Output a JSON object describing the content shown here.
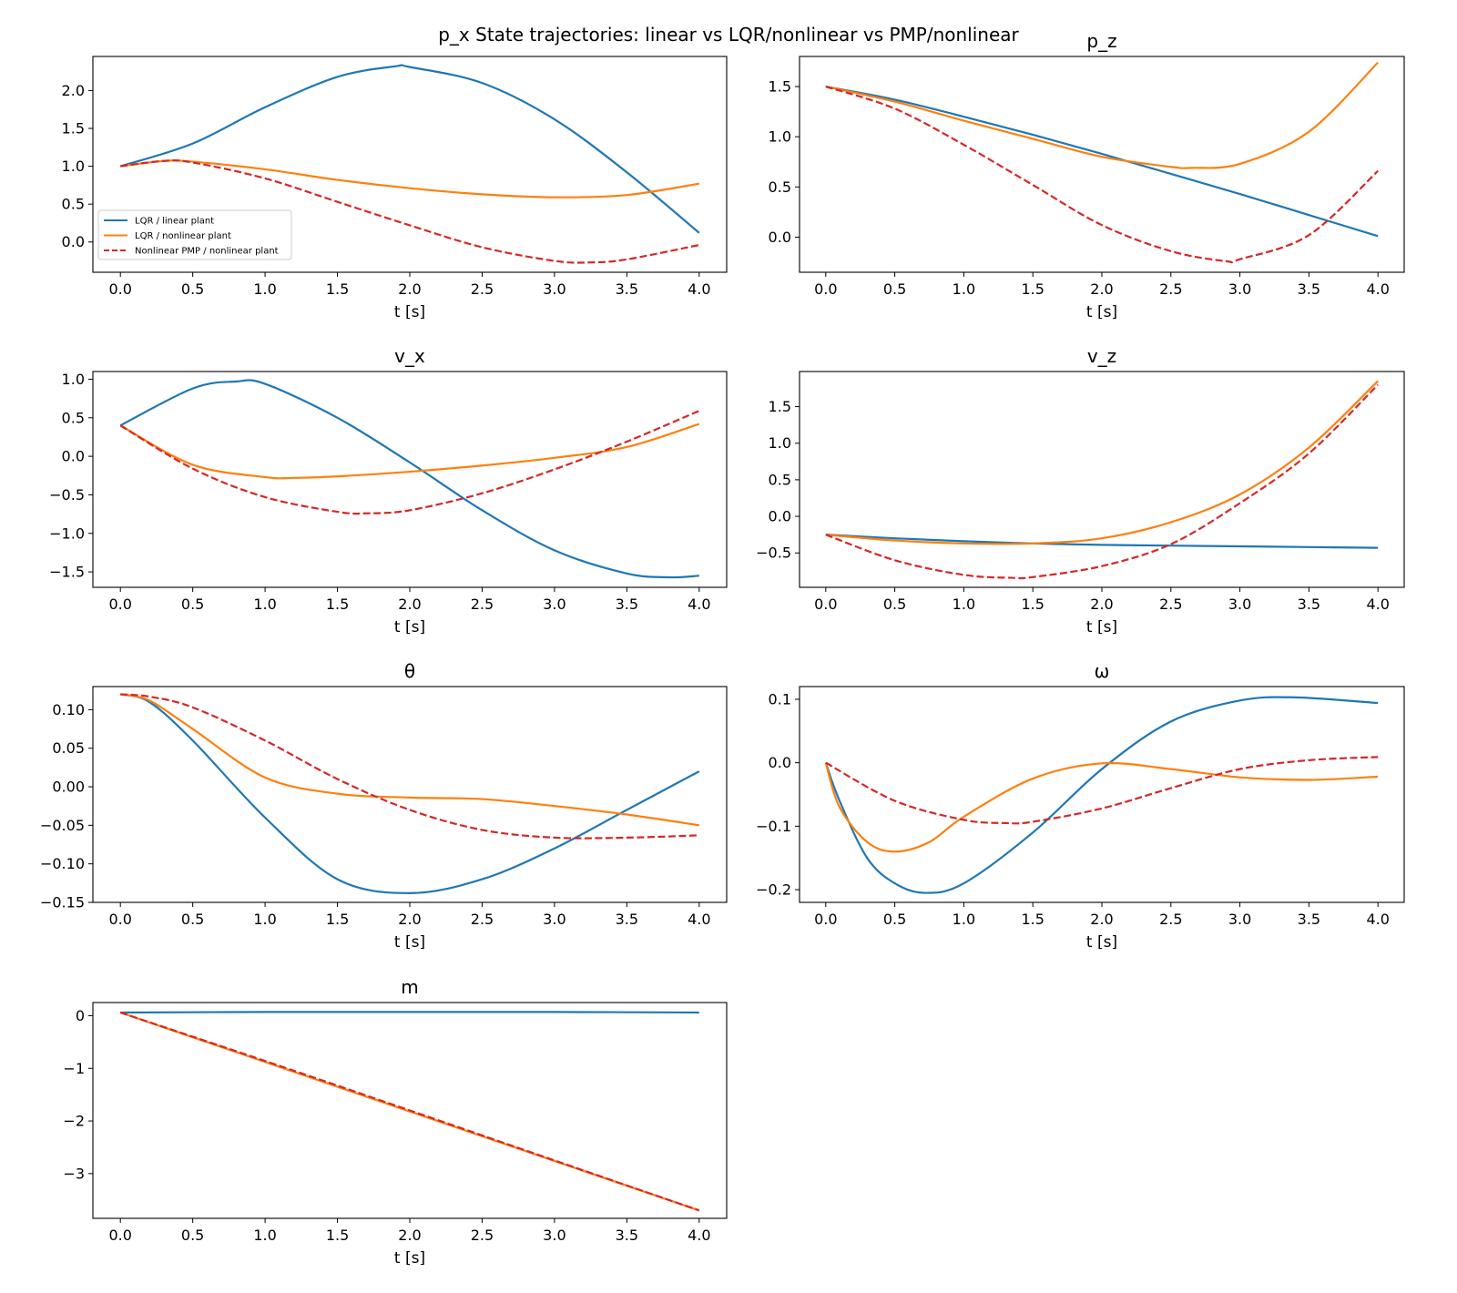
{
  "figure": {
    "title": "p_x State trajectories: linear vs LQR/nonlinear vs PMP/nonlinear"
  },
  "legend": {
    "entries": [
      "LQR / linear plant",
      "LQR / nonlinear plant",
      "Nonlinear PMP / nonlinear plant"
    ],
    "placement": "lower-left"
  },
  "chart_data": [
    {
      "type": "line",
      "title": "",
      "xlabel": "t [s]",
      "ylabel": "",
      "xlim": [
        -0.19,
        4.19
      ],
      "ylim": [
        -0.4,
        2.45
      ],
      "xticks": [
        0.0,
        0.5,
        1.0,
        1.5,
        2.0,
        2.5,
        3.0,
        3.5,
        4.0
      ],
      "xtick_labels": [
        "0.0",
        "0.5",
        "1.0",
        "1.5",
        "2.0",
        "2.5",
        "3.0",
        "3.5",
        "4.0"
      ],
      "yticks": [
        0.0,
        0.5,
        1.0,
        1.5,
        2.0
      ],
      "ytick_labels": [
        "0.0",
        "0.5",
        "1.0",
        "1.5",
        "2.0"
      ],
      "grid": false,
      "show_legend": true,
      "series": [
        {
          "name": "LQR / linear plant",
          "color": "#1f77b4",
          "dash": "solid",
          "x": [
            0,
            0.5,
            1.0,
            1.5,
            1.9,
            2.0,
            2.5,
            3.0,
            3.5,
            4.0
          ],
          "y": [
            1.0,
            1.3,
            1.78,
            2.18,
            2.32,
            2.31,
            2.1,
            1.62,
            0.92,
            0.12
          ]
        },
        {
          "name": "LQR / nonlinear plant",
          "color": "#ff7f0e",
          "dash": "solid",
          "x": [
            0,
            0.3,
            0.5,
            1.0,
            1.5,
            2.0,
            2.5,
            3.0,
            3.5,
            4.0
          ],
          "y": [
            1.0,
            1.07,
            1.06,
            0.96,
            0.82,
            0.71,
            0.63,
            0.59,
            0.62,
            0.77
          ]
        },
        {
          "name": "Nonlinear PMP / nonlinear plant",
          "color": "#d62728",
          "dash": "dashed",
          "x": [
            0,
            0.3,
            0.5,
            1.0,
            1.5,
            2.0,
            2.5,
            3.0,
            3.25,
            3.5,
            4.0
          ],
          "y": [
            1.0,
            1.07,
            1.05,
            0.84,
            0.53,
            0.22,
            -0.07,
            -0.25,
            -0.27,
            -0.23,
            -0.04
          ]
        }
      ]
    },
    {
      "type": "line",
      "title": "p_z",
      "xlabel": "t [s]",
      "ylabel": "",
      "xlim": [
        -0.19,
        4.19
      ],
      "ylim": [
        -0.35,
        1.8
      ],
      "xticks": [
        0.0,
        0.5,
        1.0,
        1.5,
        2.0,
        2.5,
        3.0,
        3.5,
        4.0
      ],
      "xtick_labels": [
        "0.0",
        "0.5",
        "1.0",
        "1.5",
        "2.0",
        "2.5",
        "3.0",
        "3.5",
        "4.0"
      ],
      "yticks": [
        0.0,
        0.5,
        1.0,
        1.5
      ],
      "ytick_labels": [
        "0.0",
        "0.5",
        "1.0",
        "1.5"
      ],
      "grid": false,
      "show_legend": false,
      "series": [
        {
          "name": "LQR / linear plant",
          "color": "#1f77b4",
          "dash": "solid",
          "x": [
            0,
            0.5,
            1.0,
            1.5,
            2.0,
            2.5,
            3.0,
            3.5,
            4.0
          ],
          "y": [
            1.5,
            1.37,
            1.2,
            1.02,
            0.83,
            0.63,
            0.43,
            0.22,
            0.01
          ]
        },
        {
          "name": "LQR / nonlinear plant",
          "color": "#ff7f0e",
          "dash": "solid",
          "x": [
            0,
            0.5,
            1.0,
            1.5,
            2.0,
            2.5,
            2.65,
            3.0,
            3.5,
            4.0
          ],
          "y": [
            1.5,
            1.35,
            1.16,
            0.98,
            0.8,
            0.7,
            0.69,
            0.73,
            1.05,
            1.74
          ]
        },
        {
          "name": "Nonlinear PMP / nonlinear plant",
          "color": "#d62728",
          "dash": "dashed",
          "x": [
            0,
            0.5,
            1.0,
            1.5,
            2.0,
            2.5,
            2.9,
            3.0,
            3.5,
            4.0
          ],
          "y": [
            1.5,
            1.28,
            0.92,
            0.52,
            0.12,
            -0.14,
            -0.24,
            -0.22,
            0.02,
            0.66
          ]
        }
      ]
    },
    {
      "type": "line",
      "title": "v_x",
      "xlabel": "t [s]",
      "ylabel": "",
      "xlim": [
        -0.19,
        4.19
      ],
      "ylim": [
        -1.7,
        1.1
      ],
      "xticks": [
        0.0,
        0.5,
        1.0,
        1.5,
        2.0,
        2.5,
        3.0,
        3.5,
        4.0
      ],
      "xtick_labels": [
        "0.0",
        "0.5",
        "1.0",
        "1.5",
        "2.0",
        "2.5",
        "3.0",
        "3.5",
        "4.0"
      ],
      "yticks": [
        1.0,
        0.5,
        0.0,
        -0.5,
        -1.0,
        -1.5
      ],
      "ytick_labels": [
        "1.0",
        "0.5",
        "0.0",
        "−0.5",
        "−1.0",
        "−1.5"
      ],
      "grid": false,
      "show_legend": false,
      "series": [
        {
          "name": "LQR / linear plant",
          "color": "#1f77b4",
          "dash": "solid",
          "x": [
            0,
            0.5,
            0.8,
            1.0,
            1.5,
            2.0,
            2.5,
            3.0,
            3.5,
            3.8,
            4.0
          ],
          "y": [
            0.4,
            0.88,
            0.97,
            0.94,
            0.5,
            -0.08,
            -0.7,
            -1.22,
            -1.52,
            -1.57,
            -1.55
          ]
        },
        {
          "name": "LQR / nonlinear plant",
          "color": "#ff7f0e",
          "dash": "solid",
          "x": [
            0,
            0.5,
            1.0,
            1.2,
            1.5,
            2.0,
            2.5,
            3.0,
            3.5,
            4.0
          ],
          "y": [
            0.4,
            -0.11,
            -0.27,
            -0.28,
            -0.26,
            -0.2,
            -0.12,
            -0.02,
            0.12,
            0.42
          ]
        },
        {
          "name": "Nonlinear PMP / nonlinear plant",
          "color": "#d62728",
          "dash": "dashed",
          "x": [
            0,
            0.5,
            1.0,
            1.5,
            1.7,
            2.0,
            2.5,
            3.0,
            3.5,
            4.0
          ],
          "y": [
            0.4,
            -0.16,
            -0.53,
            -0.72,
            -0.74,
            -0.7,
            -0.48,
            -0.17,
            0.19,
            0.59
          ]
        }
      ]
    },
    {
      "type": "line",
      "title": "v_z",
      "xlabel": "t [s]",
      "ylabel": "",
      "xlim": [
        -0.19,
        4.19
      ],
      "ylim": [
        -0.97,
        1.98
      ],
      "xticks": [
        0.0,
        0.5,
        1.0,
        1.5,
        2.0,
        2.5,
        3.0,
        3.5,
        4.0
      ],
      "xtick_labels": [
        "0.0",
        "0.5",
        "1.0",
        "1.5",
        "2.0",
        "2.5",
        "3.0",
        "3.5",
        "4.0"
      ],
      "yticks": [
        1.5,
        1.0,
        0.5,
        0.0,
        -0.5
      ],
      "ytick_labels": [
        "1.5",
        "1.0",
        "0.5",
        "0.0",
        "−0.5"
      ],
      "grid": false,
      "show_legend": false,
      "series": [
        {
          "name": "LQR / linear plant",
          "color": "#1f77b4",
          "dash": "solid",
          "x": [
            0,
            0.5,
            1.0,
            1.5,
            2.0,
            2.5,
            3.0,
            3.5,
            4.0
          ],
          "y": [
            -0.25,
            -0.3,
            -0.34,
            -0.37,
            -0.39,
            -0.4,
            -0.41,
            -0.42,
            -0.43
          ]
        },
        {
          "name": "LQR / nonlinear plant",
          "color": "#ff7f0e",
          "dash": "solid",
          "x": [
            0,
            0.5,
            1.0,
            1.5,
            2.0,
            2.5,
            3.0,
            3.5,
            4.0
          ],
          "y": [
            -0.25,
            -0.33,
            -0.37,
            -0.37,
            -0.3,
            -0.08,
            0.3,
            0.94,
            1.85
          ]
        },
        {
          "name": "Nonlinear PMP / nonlinear plant",
          "color": "#d62728",
          "dash": "dashed",
          "x": [
            0,
            0.5,
            1.0,
            1.35,
            1.5,
            2.0,
            2.5,
            3.0,
            3.5,
            4.0
          ],
          "y": [
            -0.25,
            -0.6,
            -0.8,
            -0.84,
            -0.83,
            -0.68,
            -0.38,
            0.18,
            0.86,
            1.8
          ]
        }
      ]
    },
    {
      "type": "line",
      "title": "θ",
      "xlabel": "t [s]",
      "ylabel": "",
      "xlim": [
        -0.19,
        4.19
      ],
      "ylim": [
        -0.15,
        0.13
      ],
      "xticks": [
        0.0,
        0.5,
        1.0,
        1.5,
        2.0,
        2.5,
        3.0,
        3.5,
        4.0
      ],
      "xtick_labels": [
        "0.0",
        "0.5",
        "1.0",
        "1.5",
        "2.0",
        "2.5",
        "3.0",
        "3.5",
        "4.0"
      ],
      "yticks": [
        0.1,
        0.05,
        0.0,
        -0.05,
        -0.1,
        -0.15
      ],
      "ytick_labels": [
        "0.10",
        "0.05",
        "0.00",
        "−0.05",
        "−0.10",
        "−0.15"
      ],
      "grid": false,
      "show_legend": false,
      "series": [
        {
          "name": "LQR / linear plant",
          "color": "#1f77b4",
          "dash": "solid",
          "x": [
            0,
            0.2,
            0.5,
            1.0,
            1.5,
            2.0,
            2.5,
            3.0,
            3.5,
            4.0
          ],
          "y": [
            0.12,
            0.11,
            0.06,
            -0.04,
            -0.12,
            -0.138,
            -0.12,
            -0.08,
            -0.03,
            0.02
          ]
        },
        {
          "name": "LQR / nonlinear plant",
          "color": "#ff7f0e",
          "dash": "solid",
          "x": [
            0,
            0.2,
            0.5,
            1.0,
            1.5,
            2.0,
            2.5,
            3.0,
            3.5,
            4.0
          ],
          "y": [
            0.12,
            0.112,
            0.075,
            0.012,
            -0.009,
            -0.014,
            -0.016,
            -0.025,
            -0.036,
            -0.05
          ]
        },
        {
          "name": "Nonlinear PMP / nonlinear plant",
          "color": "#d62728",
          "dash": "dashed",
          "x": [
            0,
            0.2,
            0.5,
            1.0,
            1.5,
            2.0,
            2.5,
            3.0,
            3.5,
            4.0
          ],
          "y": [
            0.12,
            0.117,
            0.103,
            0.06,
            0.01,
            -0.03,
            -0.056,
            -0.066,
            -0.066,
            -0.063
          ]
        }
      ]
    },
    {
      "type": "line",
      "title": "ω",
      "xlabel": "t [s]",
      "ylabel": "",
      "xlim": [
        -0.19,
        4.19
      ],
      "ylim": [
        -0.22,
        0.12
      ],
      "xticks": [
        0.0,
        0.5,
        1.0,
        1.5,
        2.0,
        2.5,
        3.0,
        3.5,
        4.0
      ],
      "xtick_labels": [
        "0.0",
        "0.5",
        "1.0",
        "1.5",
        "2.0",
        "2.5",
        "3.0",
        "3.5",
        "4.0"
      ],
      "yticks": [
        0.1,
        0.0,
        -0.1,
        -0.2
      ],
      "ytick_labels": [
        "0.1",
        "0.0",
        "−0.1",
        "−0.2"
      ],
      "grid": false,
      "show_legend": false,
      "series": [
        {
          "name": "LQR / linear plant",
          "color": "#1f77b4",
          "dash": "solid",
          "x": [
            0,
            0.1,
            0.3,
            0.5,
            0.72,
            1.0,
            1.5,
            2.0,
            2.5,
            3.0,
            3.4,
            4.0
          ],
          "y": [
            0.0,
            -0.06,
            -0.15,
            -0.19,
            -0.205,
            -0.19,
            -0.11,
            -0.01,
            0.065,
            0.098,
            0.103,
            0.094
          ]
        },
        {
          "name": "LQR / nonlinear plant",
          "color": "#ff7f0e",
          "dash": "solid",
          "x": [
            0,
            0.1,
            0.3,
            0.5,
            0.75,
            1.0,
            1.5,
            2.0,
            2.5,
            3.0,
            3.5,
            4.0
          ],
          "y": [
            0.0,
            -0.07,
            -0.125,
            -0.14,
            -0.125,
            -0.085,
            -0.025,
            -0.001,
            -0.01,
            -0.023,
            -0.027,
            -0.022
          ]
        },
        {
          "name": "Nonlinear PMP / nonlinear plant",
          "color": "#d62728",
          "dash": "dashed",
          "x": [
            0,
            0.5,
            1.0,
            1.3,
            1.5,
            2.0,
            2.5,
            3.0,
            3.5,
            4.0
          ],
          "y": [
            0.0,
            -0.06,
            -0.09,
            -0.095,
            -0.093,
            -0.072,
            -0.04,
            -0.01,
            0.004,
            0.009
          ]
        }
      ]
    },
    {
      "type": "line",
      "title": "m",
      "xlabel": "t [s]",
      "ylabel": "",
      "xlim": [
        -0.19,
        4.19
      ],
      "ylim": [
        -3.85,
        0.25
      ],
      "xticks": [
        0.0,
        0.5,
        1.0,
        1.5,
        2.0,
        2.5,
        3.0,
        3.5,
        4.0
      ],
      "xtick_labels": [
        "0.0",
        "0.5",
        "1.0",
        "1.5",
        "2.0",
        "2.5",
        "3.0",
        "3.5",
        "4.0"
      ],
      "yticks": [
        0,
        -1,
        -2,
        -3
      ],
      "ytick_labels": [
        "0",
        "−1",
        "−2",
        "−3"
      ],
      "grid": false,
      "show_legend": false,
      "series": [
        {
          "name": "LQR / linear plant",
          "color": "#1f77b4",
          "dash": "solid",
          "x": [
            0,
            1.0,
            2.0,
            3.0,
            4.0
          ],
          "y": [
            0.06,
            0.07,
            0.07,
            0.07,
            0.06
          ]
        },
        {
          "name": "LQR / nonlinear plant",
          "color": "#ff7f0e",
          "dash": "solid",
          "x": [
            0,
            4.0
          ],
          "y": [
            0.06,
            -3.7
          ]
        },
        {
          "name": "Nonlinear PMP / nonlinear plant",
          "color": "#d62728",
          "dash": "dashed",
          "x": [
            0,
            1.0,
            2.0,
            3.0,
            4.0
          ],
          "y": [
            0.06,
            -0.86,
            -1.8,
            -2.75,
            -3.7
          ]
        }
      ]
    }
  ]
}
